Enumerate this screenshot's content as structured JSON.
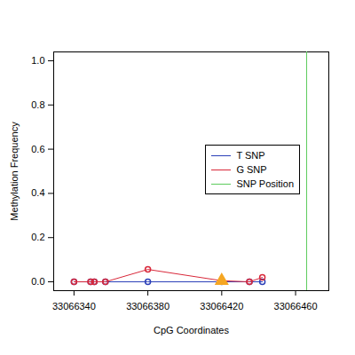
{
  "chart_data": {
    "type": "line",
    "x_label": "CpG Coordinates",
    "y_label": "Methylation Frequency",
    "xlim": [
      33066329,
      33066478
    ],
    "xticks": [
      33066340,
      33066380,
      33066420,
      33066460
    ],
    "ylim": [
      -0.04,
      1.04
    ],
    "yticks": [
      {
        "value": 0,
        "label": "0.0"
      },
      {
        "value": 0.2,
        "label": "0.2"
      },
      {
        "value": 0.4,
        "label": "0.4"
      },
      {
        "value": 0.6,
        "label": "0.6"
      },
      {
        "value": 0.8,
        "label": "0.8"
      },
      {
        "value": 1,
        "label": "1.0"
      }
    ],
    "x": [
      33066340,
      33066349,
      33066351,
      33066357,
      33066380,
      33066420,
      33066435,
      33066442
    ],
    "series": [
      {
        "name": "T SNP",
        "color": "#2b3fb8",
        "marker": "circle",
        "values": [
          0,
          0,
          0,
          0,
          0,
          0,
          0,
          0
        ]
      },
      {
        "name": "G SNP",
        "color": "#d9283a",
        "marker": "circle",
        "values": [
          0,
          0,
          0,
          0,
          0.056,
          0.005,
          0,
          0.02
        ]
      }
    ],
    "snp_position": {
      "name": "SNP Position",
      "x": 33066466,
      "color": "#5ccc5c"
    },
    "markers": [
      {
        "x": 33066420,
        "y": 0.005,
        "color": "#f5a623",
        "marker": "triangle"
      }
    ],
    "legend": "right"
  }
}
